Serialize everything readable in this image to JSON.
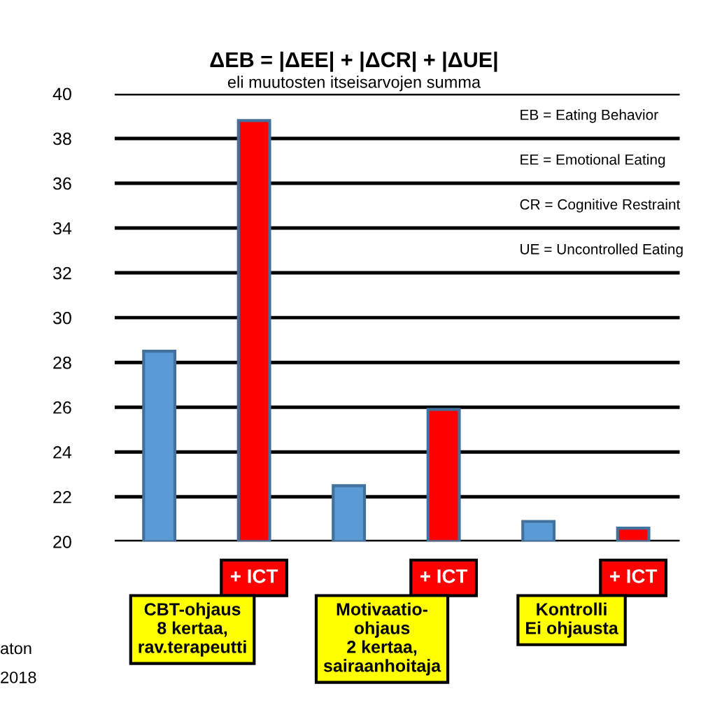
{
  "chart_data": {
    "type": "bar",
    "title": "ΔEB = |ΔEE| + |ΔCR| + |ΔUE|",
    "subtitle": "eli muutosten itseisarvojen summa",
    "categories": [
      null,
      "+ ICT",
      null,
      "+ ICT",
      null,
      "+ ICT"
    ],
    "values": [
      28.5,
      38.8,
      22.5,
      25.9,
      20.9,
      20.6
    ],
    "colors": [
      "#5b9bd5",
      "#ff0000",
      "#5b9bd5",
      "#ff0000",
      "#5b9bd5",
      "#ff0000"
    ],
    "ylim": [
      20,
      40
    ],
    "yticks": [
      20,
      22,
      24,
      26,
      28,
      30,
      32,
      34,
      36,
      38,
      40
    ],
    "grid": "y",
    "legend": false,
    "annotations": [
      "CBT-ohjaus\n8 kertaa,\nrav.terapeutti",
      "Motivaatio-\nohjaus\n2 kertaa,\nsairaanhoitaja",
      "Kontrolli\nEi ohjausta",
      "EB = Eating Behavior",
      "EE = Emotional Eating",
      "CR = Cognitive Restraint",
      "UE = Uncontrolled Eating",
      "aton",
      "2018"
    ]
  }
}
